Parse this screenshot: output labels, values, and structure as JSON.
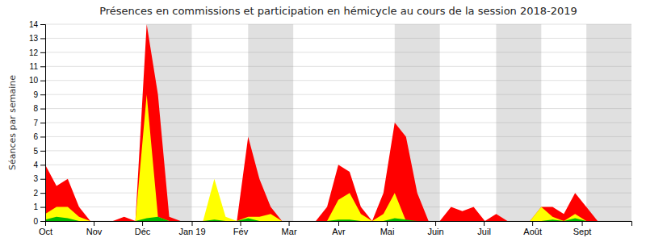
{
  "chart_data": {
    "type": "area",
    "title": "Présences en commissions et participation en hémicycle au cours de la session 2018-2019",
    "ylabel": "Séances par semaine",
    "x": [
      0,
      1,
      2,
      3,
      4,
      5,
      6,
      7,
      8,
      9,
      10,
      11,
      12,
      13,
      14,
      15,
      16,
      17,
      18,
      19,
      20,
      21,
      22,
      23,
      24,
      25,
      26,
      27,
      28,
      29,
      30,
      31,
      32,
      33,
      34,
      35,
      36,
      37,
      38,
      39,
      40,
      41,
      42,
      43,
      44,
      45,
      46,
      47,
      48,
      49,
      50,
      51
    ],
    "series": [
      {
        "color": "#ff0000",
        "values": [
          4,
          2.5,
          3,
          1,
          0,
          0,
          0,
          0.3,
          0,
          14,
          9,
          0.3,
          0,
          0,
          0,
          1,
          0,
          0,
          6,
          3,
          1,
          0,
          0,
          0,
          0,
          1,
          4,
          3.5,
          1,
          0,
          2,
          7,
          6,
          2,
          0,
          0,
          1,
          0.7,
          1,
          0,
          0.5,
          0,
          0,
          0,
          1,
          1,
          0.5,
          2,
          1,
          0,
          0,
          0
        ]
      },
      {
        "color": "#ffff00",
        "values": [
          0.5,
          1,
          1,
          0.3,
          0,
          0,
          0,
          0,
          0,
          9,
          0.3,
          0,
          0,
          0,
          0,
          3,
          0.3,
          0,
          0.3,
          0.3,
          0.5,
          0,
          0,
          0,
          0,
          0,
          1.5,
          2,
          0.5,
          0,
          0.5,
          2,
          0,
          0,
          0,
          0,
          0,
          0,
          0,
          0,
          0,
          0,
          0,
          0,
          1,
          0.3,
          0,
          0.5,
          0,
          0,
          0,
          0
        ]
      },
      {
        "color": "#00bb00",
        "values": [
          0.1,
          0.3,
          0.2,
          0,
          0,
          0,
          0,
          0,
          0,
          0.2,
          0.3,
          0,
          0,
          0,
          0,
          0.1,
          0,
          0,
          0.2,
          0,
          0,
          0,
          0,
          0,
          0,
          0,
          0.1,
          0.1,
          0,
          0,
          0,
          0.2,
          0.1,
          0,
          0,
          0,
          0,
          0,
          0,
          0,
          0,
          0,
          0,
          0,
          0,
          0.1,
          0,
          0.2,
          0,
          0,
          0,
          0
        ]
      }
    ],
    "bands": [
      [
        9,
        13
      ],
      [
        18,
        22
      ],
      [
        31,
        35
      ],
      [
        40,
        44
      ],
      [
        48,
        52
      ]
    ],
    "xlim": [
      0,
      52
    ],
    "xticks": [
      {
        "value": 0,
        "label": "Oct"
      },
      {
        "value": 4.3,
        "label": "Nov"
      },
      {
        "value": 8.6,
        "label": "Déc"
      },
      {
        "value": 13.0,
        "label": "Jan 19"
      },
      {
        "value": 17.3,
        "label": "Fév"
      },
      {
        "value": 21.6,
        "label": "Mar"
      },
      {
        "value": 26.0,
        "label": "Avr"
      },
      {
        "value": 30.3,
        "label": "Mai"
      },
      {
        "value": 34.6,
        "label": "Juin"
      },
      {
        "value": 38.9,
        "label": "Juil"
      },
      {
        "value": 43.2,
        "label": "Août"
      },
      {
        "value": 47.6,
        "label": "Sept"
      }
    ],
    "ylim": [
      0,
      14
    ],
    "yticks": [
      0,
      1,
      2,
      3,
      4,
      5,
      6,
      7,
      8,
      9,
      10,
      11,
      12,
      13,
      14
    ],
    "grid": true
  }
}
